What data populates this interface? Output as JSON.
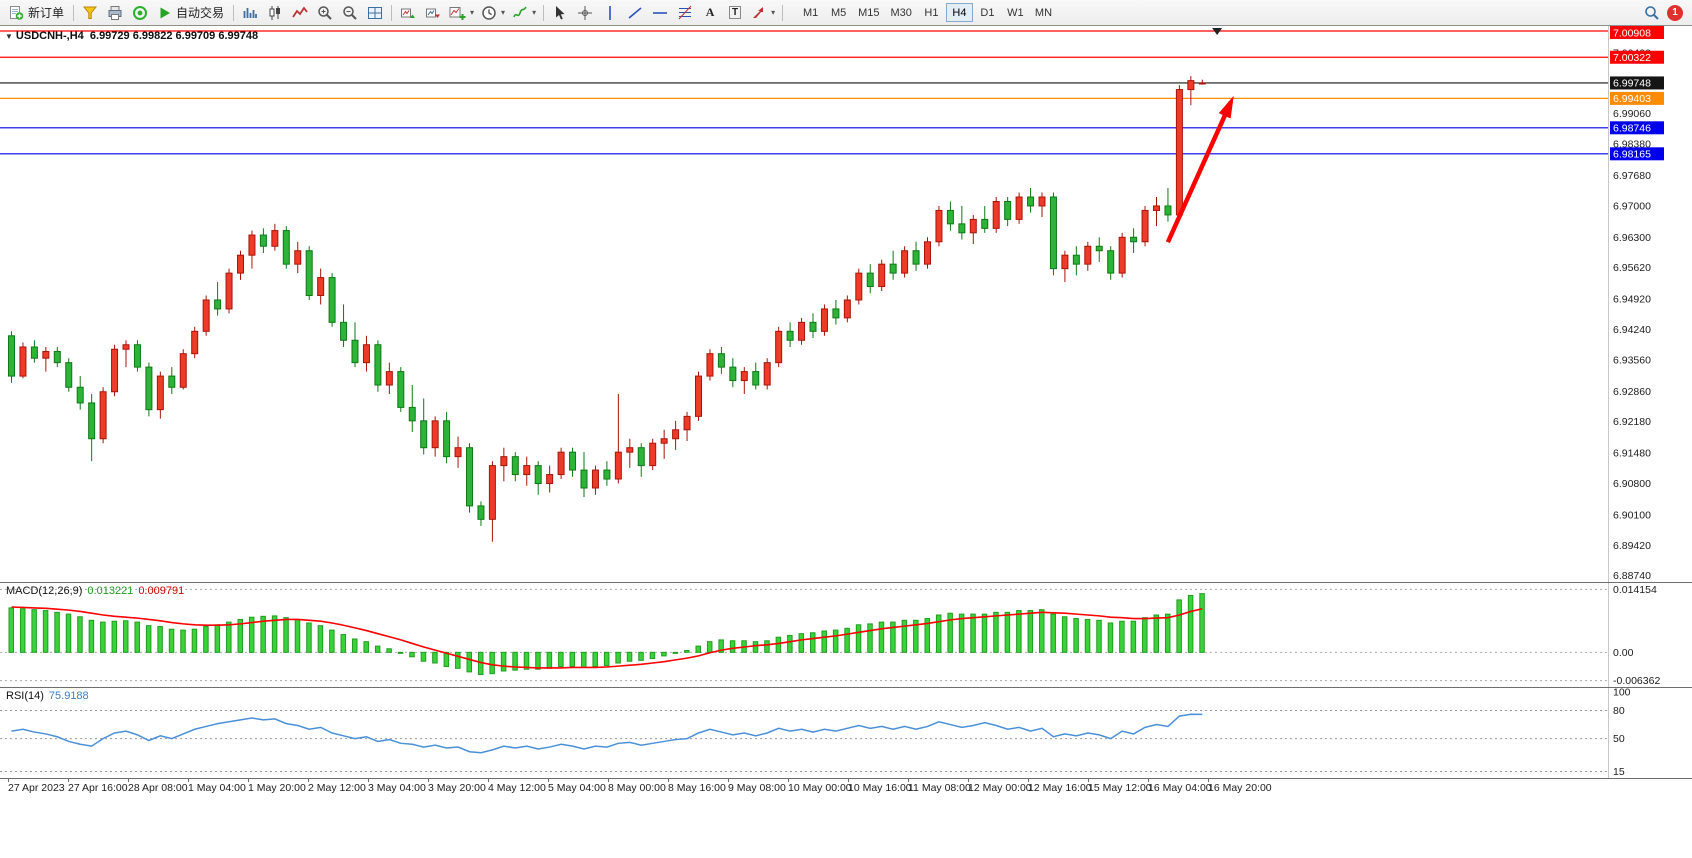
{
  "toolbar": {
    "new_order": "新订单",
    "autotrading": "自动交易",
    "timeframes": [
      "M1",
      "M5",
      "M15",
      "M30",
      "H1",
      "H4",
      "D1",
      "W1",
      "MN"
    ],
    "active_timeframe": "H4",
    "notification_badge": "1"
  },
  "chart": {
    "title": "USDCNH-,H4",
    "ohlc": "6.99729 6.99822 6.99709 6.99748"
  },
  "chart_data": {
    "type": "candlestick",
    "symbol": "USDCNH-",
    "period": "H4",
    "colors": {
      "bull": "#ee3a28",
      "bull_border": "#a81508",
      "bear": "#2db338",
      "bear_border": "#0d7a14",
      "macd_hist": "#3bd13b",
      "macd_hist_border": "#1f9e1f",
      "macd_signal": "#ff0000",
      "rsi_line": "#4a90d9"
    },
    "candles": [
      [
        6.941,
        6.942,
        6.9305,
        6.932
      ],
      [
        6.932,
        6.9395,
        6.9315,
        6.9385
      ],
      [
        6.9385,
        6.94,
        6.935,
        6.936
      ],
      [
        6.936,
        6.9385,
        6.933,
        6.9375
      ],
      [
        6.9375,
        6.9385,
        6.934,
        6.935
      ],
      [
        6.935,
        6.936,
        6.9285,
        6.9295
      ],
      [
        6.9295,
        6.932,
        6.9245,
        6.926
      ],
      [
        6.926,
        6.928,
        6.913,
        6.918
      ],
      [
        6.918,
        6.9295,
        6.917,
        6.9285
      ],
      [
        6.9285,
        6.939,
        6.9275,
        6.938
      ],
      [
        6.938,
        6.94,
        6.934,
        6.939
      ],
      [
        6.939,
        6.94,
        6.933,
        6.934
      ],
      [
        6.934,
        6.935,
        6.923,
        6.9245
      ],
      [
        6.9245,
        6.933,
        6.9225,
        6.932
      ],
      [
        6.932,
        6.934,
        6.928,
        6.9295
      ],
      [
        6.9295,
        6.938,
        6.929,
        6.937
      ],
      [
        6.937,
        6.943,
        6.936,
        6.942
      ],
      [
        6.942,
        6.95,
        6.941,
        6.949
      ],
      [
        6.949,
        6.953,
        6.9455,
        6.947
      ],
      [
        6.947,
        6.956,
        6.946,
        6.955
      ],
      [
        6.955,
        6.96,
        6.9535,
        6.959
      ],
      [
        6.959,
        6.9645,
        6.956,
        6.9635
      ],
      [
        6.9635,
        6.965,
        6.9595,
        6.961
      ],
      [
        6.961,
        6.966,
        6.96,
        6.9645
      ],
      [
        6.9645,
        6.9655,
        6.956,
        6.957
      ],
      [
        6.957,
        6.962,
        6.955,
        6.96
      ],
      [
        6.96,
        6.961,
        6.949,
        6.95
      ],
      [
        6.95,
        6.956,
        6.948,
        6.954
      ],
      [
        6.954,
        6.955,
        6.943,
        6.944
      ],
      [
        6.944,
        6.948,
        6.9385,
        6.94
      ],
      [
        6.94,
        6.944,
        6.934,
        6.935
      ],
      [
        6.935,
        6.941,
        6.933,
        6.939
      ],
      [
        6.939,
        6.94,
        6.9285,
        6.93
      ],
      [
        6.93,
        6.935,
        6.928,
        6.933
      ],
      [
        6.933,
        6.934,
        6.924,
        6.925
      ],
      [
        6.925,
        6.93,
        6.9195,
        6.922
      ],
      [
        6.922,
        6.927,
        6.9145,
        6.916
      ],
      [
        6.916,
        6.923,
        6.914,
        6.922
      ],
      [
        6.922,
        6.924,
        6.9125,
        6.914
      ],
      [
        6.914,
        6.9185,
        6.9115,
        6.916
      ],
      [
        6.916,
        6.917,
        6.9015,
        6.903
      ],
      [
        6.903,
        6.904,
        6.8985,
        6.9
      ],
      [
        6.9,
        6.913,
        6.895,
        6.912
      ],
      [
        6.912,
        6.916,
        6.9085,
        6.914
      ],
      [
        6.914,
        6.915,
        6.9085,
        6.91
      ],
      [
        6.91,
        6.914,
        6.9075,
        6.912
      ],
      [
        6.912,
        6.913,
        6.9055,
        6.908
      ],
      [
        6.908,
        6.912,
        6.906,
        6.91
      ],
      [
        6.91,
        6.916,
        6.909,
        6.915
      ],
      [
        6.915,
        6.916,
        6.9095,
        6.911
      ],
      [
        6.911,
        6.915,
        6.905,
        6.907
      ],
      [
        6.907,
        6.912,
        6.9055,
        6.911
      ],
      [
        6.911,
        6.913,
        6.9075,
        6.909
      ],
      [
        6.909,
        6.928,
        6.908,
        6.915
      ],
      [
        6.915,
        6.918,
        6.9115,
        6.916
      ],
      [
        6.916,
        6.917,
        6.9095,
        6.912
      ],
      [
        6.912,
        6.918,
        6.911,
        6.917
      ],
      [
        6.917,
        6.92,
        6.9135,
        6.918
      ],
      [
        6.918,
        6.922,
        6.9155,
        6.92
      ],
      [
        6.92,
        6.924,
        6.9175,
        6.923
      ],
      [
        6.923,
        6.933,
        6.922,
        6.932
      ],
      [
        6.932,
        6.938,
        6.931,
        6.937
      ],
      [
        6.937,
        6.9385,
        6.9325,
        6.934
      ],
      [
        6.934,
        6.936,
        6.9295,
        6.931
      ],
      [
        6.931,
        6.934,
        6.928,
        6.933
      ],
      [
        6.933,
        6.935,
        6.929,
        6.93
      ],
      [
        6.93,
        6.936,
        6.929,
        6.935
      ],
      [
        6.935,
        6.943,
        6.934,
        6.942
      ],
      [
        6.942,
        6.944,
        6.9385,
        6.94
      ],
      [
        6.94,
        6.945,
        6.939,
        6.944
      ],
      [
        6.944,
        6.946,
        6.9405,
        6.942
      ],
      [
        6.942,
        6.948,
        6.941,
        6.947
      ],
      [
        6.947,
        6.949,
        6.9435,
        6.945
      ],
      [
        6.945,
        6.95,
        6.944,
        6.949
      ],
      [
        6.949,
        6.956,
        6.948,
        6.955
      ],
      [
        6.955,
        6.957,
        6.9505,
        6.952
      ],
      [
        6.952,
        6.958,
        6.951,
        6.957
      ],
      [
        6.957,
        6.96,
        6.9535,
        6.955
      ],
      [
        6.955,
        6.961,
        6.954,
        6.96
      ],
      [
        6.96,
        6.962,
        6.9555,
        6.957
      ],
      [
        6.957,
        6.963,
        6.956,
        6.962
      ],
      [
        6.962,
        6.97,
        6.961,
        6.969
      ],
      [
        6.969,
        6.971,
        6.9645,
        6.966
      ],
      [
        6.966,
        6.97,
        6.9625,
        6.964
      ],
      [
        6.964,
        6.968,
        6.9615,
        6.967
      ],
      [
        6.967,
        6.97,
        6.964,
        6.965
      ],
      [
        6.965,
        6.972,
        6.964,
        6.971
      ],
      [
        6.971,
        6.972,
        6.9655,
        6.967
      ],
      [
        6.967,
        6.973,
        6.966,
        6.972
      ],
      [
        6.972,
        6.974,
        6.9685,
        6.97
      ],
      [
        6.97,
        6.973,
        6.9675,
        6.972
      ],
      [
        6.972,
        6.973,
        6.9545,
        6.956
      ],
      [
        6.956,
        6.96,
        6.953,
        6.959
      ],
      [
        6.959,
        6.961,
        6.9545,
        6.957
      ],
      [
        6.957,
        6.962,
        6.9555,
        6.961
      ],
      [
        6.961,
        6.963,
        6.9575,
        6.96
      ],
      [
        6.96,
        6.961,
        6.9535,
        6.955
      ],
      [
        6.955,
        6.964,
        6.954,
        6.963
      ],
      [
        6.963,
        6.965,
        6.9595,
        6.962
      ],
      [
        6.962,
        6.97,
        6.961,
        6.969
      ],
      [
        6.969,
        6.972,
        6.9655,
        6.97
      ],
      [
        6.97,
        6.974,
        6.9665,
        6.968
      ],
      [
        6.968,
        6.997,
        6.967,
        6.996
      ],
      [
        6.996,
        6.999,
        6.9925,
        6.998
      ],
      [
        6.99729,
        6.99822,
        6.99709,
        6.99748
      ]
    ],
    "main": {
      "ylim": [
        6.886,
        7.0102
      ],
      "price_ticks": [
        "7.00420",
        "6.99060",
        "6.98380",
        "6.97680",
        "6.97000",
        "6.96300",
        "6.95620",
        "6.94920",
        "6.94240",
        "6.93560",
        "6.92860",
        "6.92180",
        "6.91480",
        "6.90800",
        "6.90100",
        "6.89420",
        "6.88740"
      ],
      "hlines": [
        {
          "price": 7.00908,
          "color": "#ff0000",
          "label": "7.00908"
        },
        {
          "price": 7.00322,
          "color": "#ff0000",
          "label": "7.00322"
        },
        {
          "price": 6.99748,
          "color": "#151515",
          "label": "6.99748"
        },
        {
          "price": 6.99403,
          "color": "#ff8c00",
          "label": "6.99403"
        },
        {
          "price": 6.98746,
          "color": "#0000ee",
          "label": "6.98746"
        },
        {
          "price": 6.98165,
          "color": "#0000ee",
          "label": "6.98165"
        }
      ],
      "arrow": {
        "from_bar": 101.3,
        "from_price": 6.9619,
        "to_bar": 106.8,
        "to_price": 6.9932,
        "color": "#ff0000"
      },
      "shift_marker_bar": 105.6
    },
    "time_labels": [
      "27 Apr 2023",
      "27 Apr 16:00",
      "28 Apr 08:00",
      "1 May 04:00",
      "1 May 20:00",
      "2 May 12:00",
      "3 May 04:00",
      "3 May 20:00",
      "4 May 12:00",
      "5 May 04:00",
      "8 May 00:00",
      "8 May 16:00",
      "9 May 08:00",
      "10 May 00:00",
      "10 May 16:00",
      "11 May 08:00",
      "12 May 00:00",
      "12 May 16:00",
      "15 May 12:00",
      "16 May 04:00",
      "16 May 20:00"
    ],
    "macd": {
      "label": "MACD(12,26,9)",
      "value_text": "0.013221",
      "signal_text": "0.009791",
      "ylim": [
        -0.0078,
        0.0156
      ],
      "ticks": [
        "0.014154",
        "0.00",
        "-0.006362"
      ],
      "tick_values": [
        0.014154,
        0,
        -0.006362
      ],
      "values": [
        0.01,
        0.0098,
        0.0096,
        0.0094,
        0.009,
        0.0086,
        0.008,
        0.0072,
        0.0068,
        0.007,
        0.0071,
        0.0068,
        0.006,
        0.0058,
        0.0052,
        0.005,
        0.0052,
        0.0058,
        0.0062,
        0.0068,
        0.0074,
        0.0079,
        0.0081,
        0.0082,
        0.0078,
        0.0074,
        0.0066,
        0.006,
        0.005,
        0.004,
        0.003,
        0.0024,
        0.0014,
        0.0008,
        -0.0002,
        -0.001,
        -0.002,
        -0.0024,
        -0.0032,
        -0.0036,
        -0.0044,
        -0.005,
        -0.0048,
        -0.0042,
        -0.004,
        -0.0038,
        -0.0038,
        -0.0036,
        -0.0032,
        -0.0032,
        -0.0034,
        -0.0032,
        -0.003,
        -0.0024,
        -0.002,
        -0.0018,
        -0.0014,
        -0.0008,
        -0.0002,
        0.0004,
        0.0014,
        0.0024,
        0.0028,
        0.0026,
        0.0026,
        0.0024,
        0.0026,
        0.0034,
        0.0038,
        0.0042,
        0.0044,
        0.0048,
        0.005,
        0.0054,
        0.0062,
        0.0064,
        0.0068,
        0.0068,
        0.0072,
        0.0072,
        0.0076,
        0.0084,
        0.0088,
        0.0086,
        0.0086,
        0.0086,
        0.009,
        0.009,
        0.0094,
        0.0094,
        0.0096,
        0.0086,
        0.008,
        0.0076,
        0.0074,
        0.0072,
        0.0066,
        0.007,
        0.007,
        0.0078,
        0.0084,
        0.0086,
        0.0118,
        0.0128,
        0.0132
      ],
      "signal": [
        0.0102,
        0.0101,
        0.01,
        0.0099,
        0.0097,
        0.0095,
        0.0092,
        0.0088,
        0.0084,
        0.0081,
        0.0079,
        0.0077,
        0.0074,
        0.0071,
        0.0067,
        0.0064,
        0.0062,
        0.0061,
        0.0061,
        0.0062,
        0.0064,
        0.0067,
        0.007,
        0.0072,
        0.0074,
        0.0074,
        0.0072,
        0.007,
        0.0066,
        0.0061,
        0.0055,
        0.0049,
        0.0042,
        0.0035,
        0.0028,
        0.002,
        0.0012,
        0.0005,
        -0.0002,
        -0.0009,
        -0.0016,
        -0.0023,
        -0.0028,
        -0.0031,
        -0.0033,
        -0.0034,
        -0.0035,
        -0.0035,
        -0.0035,
        -0.0034,
        -0.0034,
        -0.0034,
        -0.0033,
        -0.0031,
        -0.0029,
        -0.0027,
        -0.0024,
        -0.0021,
        -0.0017,
        -0.0013,
        -0.0008,
        -0.0001,
        0.0005,
        0.0009,
        0.0012,
        0.0015,
        0.0017,
        0.002,
        0.0024,
        0.0028,
        0.0031,
        0.0034,
        0.0037,
        0.0041,
        0.0045,
        0.0049,
        0.0053,
        0.0056,
        0.0059,
        0.0062,
        0.0065,
        0.0069,
        0.0073,
        0.0076,
        0.0078,
        0.008,
        0.0082,
        0.0084,
        0.0086,
        0.0088,
        0.009,
        0.0089,
        0.0088,
        0.0086,
        0.0084,
        0.0082,
        0.0079,
        0.0078,
        0.0076,
        0.0076,
        0.0077,
        0.0078,
        0.0084,
        0.0092,
        0.0098
      ]
    },
    "rsi": {
      "label": "RSI(14)",
      "value_text": "75.9188",
      "ylim": [
        8,
        104
      ],
      "ticks": [
        "100",
        "80",
        "50",
        "15"
      ],
      "tick_values": [
        100,
        80,
        50,
        15
      ],
      "level_lines": [
        80,
        50,
        15
      ],
      "values": [
        58,
        60,
        57,
        55,
        52,
        47,
        44,
        42,
        50,
        56,
        58,
        54,
        48,
        53,
        50,
        55,
        60,
        63,
        66,
        68,
        70,
        72,
        70,
        71,
        66,
        64,
        60,
        62,
        56,
        53,
        50,
        52,
        47,
        49,
        45,
        44,
        41,
        43,
        40,
        41,
        36,
        35,
        38,
        42,
        40,
        42,
        39,
        41,
        44,
        42,
        39,
        42,
        41,
        45,
        46,
        43,
        45,
        47,
        49,
        50,
        56,
        60,
        57,
        54,
        56,
        53,
        56,
        61,
        58,
        60,
        57,
        60,
        58,
        61,
        64,
        61,
        63,
        60,
        63,
        60,
        63,
        68,
        65,
        62,
        64,
        67,
        64,
        60,
        62,
        58,
        61,
        52,
        55,
        53,
        56,
        54,
        50,
        58,
        55,
        62,
        65,
        63,
        74,
        76,
        75.9
      ]
    }
  }
}
